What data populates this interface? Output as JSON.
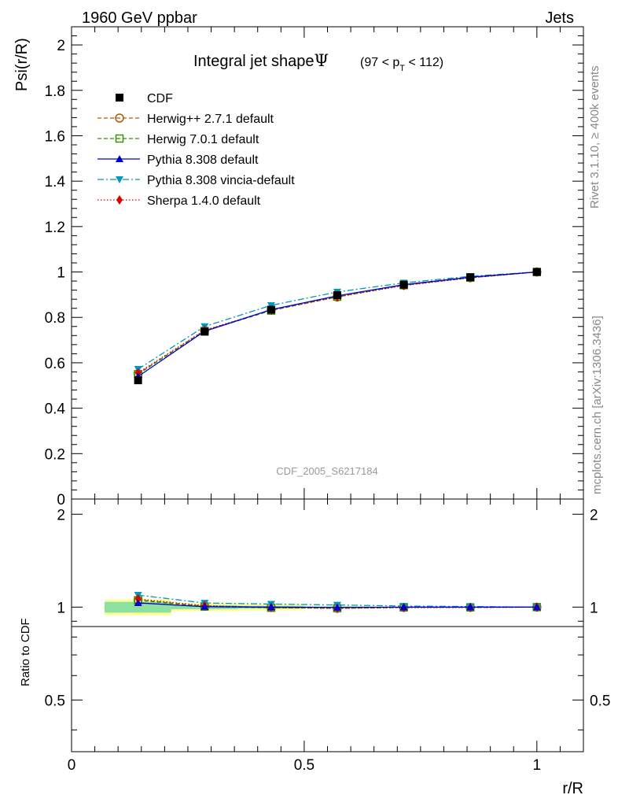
{
  "header": {
    "left_label": "1960 GeV ppbar",
    "right_label": "Jets",
    "side_label_top": "Rivet 3.1.10, ≥ 400k events",
    "side_label_bottom": "mcplots.cern.ch [arXiv:1306.3436]",
    "analysis_id": "CDF_2005_S6217184"
  },
  "chart_data": [
    {
      "type": "line",
      "panel": "main",
      "title": "Integral jet shape",
      "title_symbol": "Ψ",
      "title_range_prefix": "(97 < p",
      "title_range_sub": "T",
      "title_range_suffix": " < 112)",
      "xlabel": "r/R",
      "ylabel": "Psi(r/R)",
      "xlim": [
        0,
        1.1
      ],
      "ylim": [
        0,
        2.08
      ],
      "yticks": [
        0,
        0.2,
        0.4,
        0.6,
        0.8,
        1,
        1.2,
        1.4,
        1.6,
        1.8,
        2
      ],
      "ytick_labels": [
        "0",
        "0.2",
        "0.4",
        "0.6",
        "0.8",
        "1",
        "1.2",
        "1.4",
        "1.6",
        "1.8",
        "2"
      ],
      "x": [
        0.143,
        0.286,
        0.429,
        0.571,
        0.714,
        0.857,
        1.0
      ],
      "legend_position": "top-left",
      "series": [
        {
          "name": "CDF",
          "color": "#000000",
          "marker": "square",
          "line": "none",
          "values": [
            0.523,
            0.737,
            0.834,
            0.898,
            0.944,
            0.977,
            1.0
          ]
        },
        {
          "name": "Herwig++ 2.7.1 default",
          "color": "#b05a00",
          "marker": "circle-open",
          "line": "dashed",
          "values": [
            0.552,
            0.742,
            0.832,
            0.89,
            0.942,
            0.975,
            1.0
          ]
        },
        {
          "name": "Herwig 7.0.1 default",
          "color": "#3a8f00",
          "marker": "square-open",
          "line": "dashed",
          "values": [
            0.55,
            0.74,
            0.83,
            0.891,
            0.942,
            0.975,
            1.0
          ]
        },
        {
          "name": "Pythia 8.308 default",
          "color": "#0000cc",
          "marker": "triangle-up",
          "line": "solid",
          "values": [
            0.54,
            0.739,
            0.834,
            0.895,
            0.944,
            0.977,
            1.0
          ]
        },
        {
          "name": "Pythia 8.308 vincia-default",
          "color": "#0099bb",
          "marker": "triangle-down",
          "line": "dashdot",
          "values": [
            0.572,
            0.76,
            0.853,
            0.912,
            0.952,
            0.981,
            1.0
          ]
        },
        {
          "name": "Sherpa 1.4.0 default",
          "color": "#e00000",
          "marker": "diamond",
          "line": "dotted",
          "values": [
            0.556,
            0.744,
            0.832,
            0.89,
            0.94,
            0.974,
            1.0
          ]
        }
      ]
    },
    {
      "type": "line",
      "panel": "ratio",
      "ylabel": "Ratio to CDF",
      "xlabel": "r/R",
      "xlim": [
        0,
        1.1
      ],
      "ylim": [
        0.34,
        2.24
      ],
      "yticks": [
        0.5,
        1,
        2
      ],
      "ytick_labels": [
        "0.5",
        "1",
        "2"
      ],
      "xticks": [
        0,
        0.5,
        1
      ],
      "xtick_labels": [
        "0",
        "0.5",
        "1"
      ],
      "x": [
        0.143,
        0.286,
        0.429,
        0.571,
        0.714,
        0.857,
        1.0
      ],
      "band_x": [
        0.071,
        0.214,
        0.357,
        0.5,
        0.643,
        0.786,
        0.929,
        1.071
      ],
      "band_stat": [
        [
          0.96,
          1.04
        ],
        [
          0.985,
          1.015
        ],
        [
          0.99,
          1.01
        ],
        [
          0.995,
          1.005
        ],
        [
          0.997,
          1.003
        ],
        [
          0.998,
          1.002
        ],
        [
          1.0,
          1.0
        ]
      ],
      "band_total": [
        [
          0.94,
          1.06
        ],
        [
          0.97,
          1.03
        ],
        [
          0.975,
          1.025
        ],
        [
          0.99,
          1.01
        ],
        [
          0.995,
          1.005
        ],
        [
          0.997,
          1.003
        ],
        [
          1.0,
          1.0
        ]
      ],
      "band_colors": {
        "stat": "#8ce0a0",
        "total": "#ffff99"
      },
      "series": [
        {
          "name": "Herwig++ 2.7.1 default",
          "color": "#b05a00",
          "marker": "circle-open",
          "line": "dashed",
          "values": [
            1.055,
            1.007,
            0.998,
            0.991,
            0.998,
            0.998,
            1.0
          ]
        },
        {
          "name": "Herwig 7.0.1 default",
          "color": "#3a8f00",
          "marker": "square-open",
          "line": "dashed",
          "values": [
            1.052,
            1.004,
            0.995,
            0.992,
            0.998,
            0.998,
            1.0
          ]
        },
        {
          "name": "Pythia 8.308 default",
          "color": "#0000cc",
          "marker": "triangle-up",
          "line": "solid",
          "values": [
            1.032,
            1.003,
            1.0,
            0.997,
            1.0,
            1.0,
            1.0
          ]
        },
        {
          "name": "Pythia 8.308 vincia-default",
          "color": "#0099bb",
          "marker": "triangle-down",
          "line": "dashdot",
          "values": [
            1.094,
            1.031,
            1.023,
            1.016,
            1.008,
            1.004,
            1.0
          ]
        },
        {
          "name": "Sherpa 1.4.0 default",
          "color": "#e00000",
          "marker": "diamond",
          "line": "dotted",
          "values": [
            1.063,
            1.01,
            0.997,
            0.991,
            0.996,
            0.997,
            1.0
          ]
        }
      ]
    }
  ]
}
